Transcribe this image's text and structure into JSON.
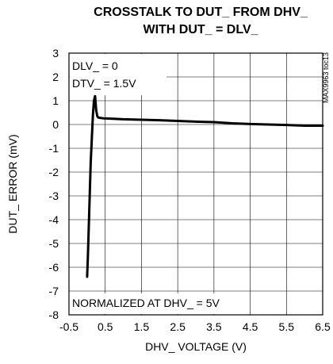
{
  "chart_data": {
    "type": "line",
    "title_lines": [
      "CROSSTALK TO DUT_ FROM DHV_",
      "WITH DUT_ = DLV_"
    ],
    "xlabel": "DHV_ VOLTAGE (V)",
    "ylabel": "DUT_ ERROR (mV)",
    "xlim": [
      -0.5,
      6.5
    ],
    "ylim": [
      -8,
      3
    ],
    "x_ticks": [
      -0.5,
      0.5,
      1.5,
      2.5,
      3.5,
      4.5,
      5.5,
      6.5
    ],
    "x_tick_labels": [
      "-0.5",
      "0.5",
      "1.5",
      "2.5",
      "3.5",
      "4.5",
      "5.5",
      "6.5"
    ],
    "y_ticks": [
      3,
      2,
      1,
      0,
      -1,
      -2,
      -3,
      -4,
      -5,
      -6,
      -7,
      -8
    ],
    "y_tick_labels": [
      "3",
      "2",
      "1",
      "0",
      "-1",
      "-2",
      "-3",
      "-4",
      "-5",
      "-6",
      "-7",
      "-8"
    ],
    "grid": true,
    "annotations": [
      "DLV_ = 0",
      "DTV_ = 1.5V",
      "NORMALIZED AT DHV_ = 5V"
    ],
    "side_label": "MAX9963 toc13",
    "series": [
      {
        "color": "#000000",
        "x": [
          0.0,
          0.02,
          0.04,
          0.06,
          0.08,
          0.1,
          0.13,
          0.16,
          0.19,
          0.22,
          0.25,
          0.28,
          0.3,
          0.35,
          0.45,
          0.6,
          1.0,
          1.5,
          2.0,
          2.5,
          3.0,
          3.5,
          4.0,
          4.5,
          5.0,
          5.5,
          6.0,
          6.5
        ],
        "y": [
          -6.4,
          -5.6,
          -4.6,
          -3.6,
          -2.6,
          -1.6,
          -0.6,
          0.4,
          1.0,
          1.2,
          0.6,
          0.35,
          0.3,
          0.28,
          0.26,
          0.25,
          0.22,
          0.2,
          0.18,
          0.15,
          0.12,
          0.1,
          0.05,
          0.02,
          0.0,
          -0.02,
          -0.05,
          -0.05
        ]
      }
    ]
  }
}
